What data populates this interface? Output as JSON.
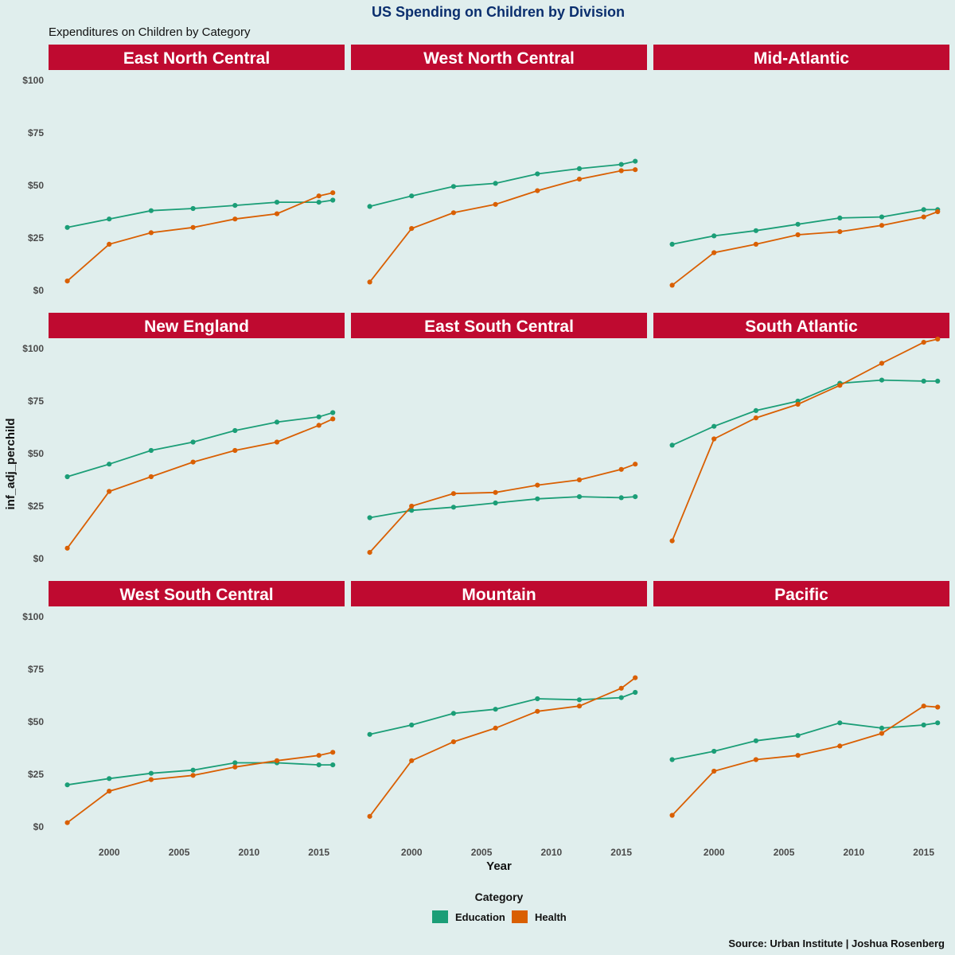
{
  "title": "US Spending on Children by Division",
  "subtitle": "Expenditures on Children by Category",
  "caption": "Source: Urban Institute | Joshua Rosenberg",
  "colors": {
    "background": "#e0eeed",
    "strip": "#bf0a30",
    "title": "#0a2e6e",
    "education": "#1b9e77",
    "health": "#d95f02"
  },
  "chart_data": {
    "type": "line",
    "xlabel": "Year",
    "ylabel": "inf_adj_perchild",
    "xlim": [
      1996,
      2016.5
    ],
    "ylim": [
      0,
      100
    ],
    "x_ticks": [
      2000,
      2005,
      2010,
      2015
    ],
    "y_tick_values": [
      0,
      25,
      50,
      75,
      100
    ],
    "y_tick_labels": [
      "$0",
      "$25",
      "$50",
      "$75",
      "$100"
    ],
    "years": [
      1997,
      2000,
      2003,
      2006,
      2009,
      2012,
      2015,
      2016
    ],
    "legend": {
      "title": "Category",
      "position": "bottom",
      "entries": [
        "Education",
        "Health"
      ]
    },
    "panels": [
      {
        "name": "East North Central",
        "education": [
          30,
          34,
          38,
          39,
          40.5,
          42,
          42,
          43
        ],
        "health": [
          4.5,
          22,
          27.5,
          30,
          34,
          36.5,
          45,
          46.5
        ]
      },
      {
        "name": "West North Central",
        "education": [
          40,
          45,
          49.5,
          51,
          55.5,
          58,
          60,
          61.5
        ],
        "health": [
          4,
          29.5,
          37,
          41,
          47.5,
          53,
          57,
          57.5
        ]
      },
      {
        "name": "Mid-Atlantic",
        "education": [
          22,
          26,
          28.5,
          31.5,
          34.5,
          35,
          38.5,
          38.5
        ],
        "health": [
          2.5,
          18,
          22,
          26.5,
          28,
          31,
          35,
          37.5
        ]
      },
      {
        "name": "New England",
        "education": [
          39,
          45,
          51.5,
          55.5,
          61,
          65,
          67.5,
          69.5
        ],
        "health": [
          5,
          32,
          39,
          46,
          51.5,
          55.5,
          63.5,
          66.5
        ]
      },
      {
        "name": "East South Central",
        "education": [
          19.5,
          23,
          24.5,
          26.5,
          28.5,
          29.5,
          29,
          29.5
        ],
        "health": [
          3,
          25,
          31,
          31.5,
          35,
          37.5,
          42.5,
          45
        ]
      },
      {
        "name": "South Atlantic",
        "education": [
          54,
          63,
          70.5,
          75,
          83.5,
          85,
          84.5,
          84.5
        ],
        "health": [
          8.5,
          57,
          67,
          73.5,
          82.5,
          93,
          103,
          104.5
        ]
      },
      {
        "name": "West South Central",
        "education": [
          20,
          23,
          25.5,
          27,
          30.5,
          30.5,
          29.5,
          29.5
        ],
        "health": [
          2,
          17,
          22.5,
          24.5,
          28.5,
          31.5,
          34,
          35.5
        ]
      },
      {
        "name": "Mountain",
        "education": [
          44,
          48.5,
          54,
          56,
          61,
          60.5,
          61.5,
          64
        ],
        "health": [
          5,
          31.5,
          40.5,
          47,
          55,
          57.5,
          66,
          71
        ]
      },
      {
        "name": "Pacific",
        "education": [
          32,
          36,
          41,
          43.5,
          49.5,
          47,
          48.5,
          49.5
        ],
        "health": [
          5.5,
          26.5,
          32,
          34,
          38.5,
          44.5,
          57.5,
          57
        ]
      }
    ]
  }
}
